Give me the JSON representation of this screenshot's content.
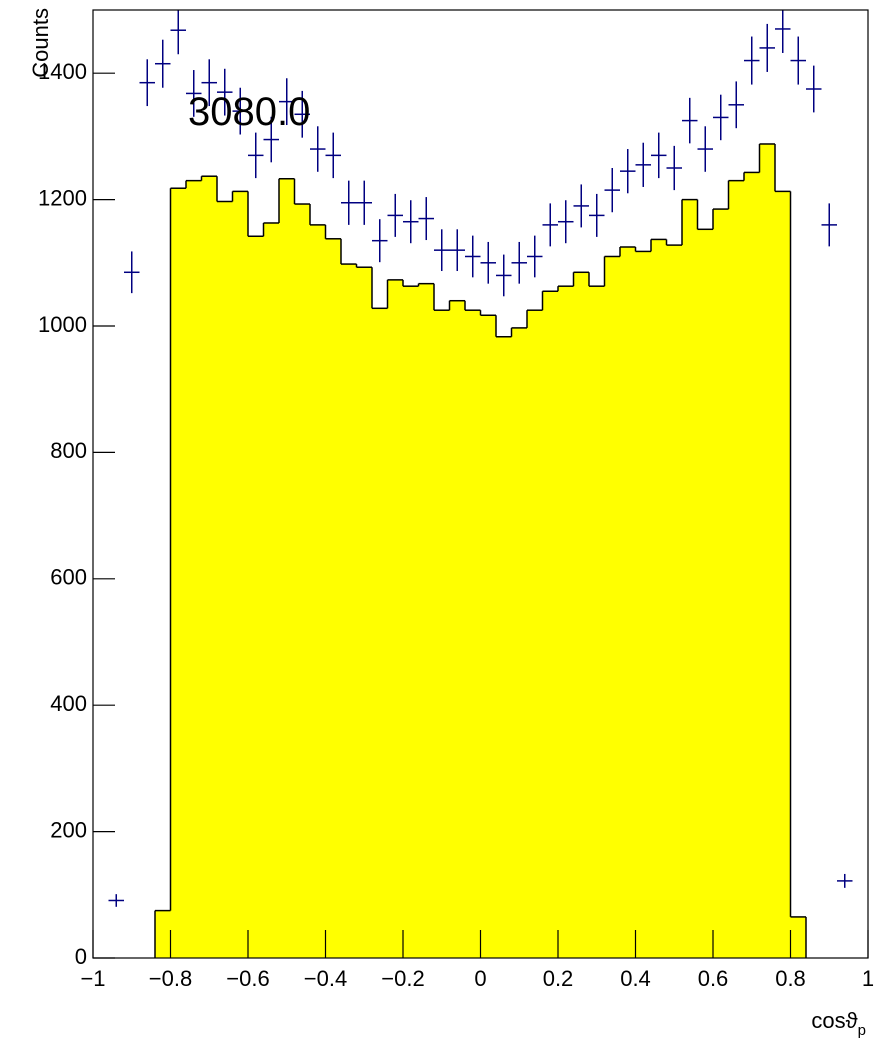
{
  "chart_data": {
    "type": "histogram",
    "ylabel": "Counts",
    "xlabel": {
      "main": "cosϑ",
      "sub": "p"
    },
    "annotation": "3080.0",
    "xlim": [
      -1,
      1
    ],
    "ylim": [
      0,
      1500
    ],
    "xticks": [
      {
        "value": -1,
        "label": "−1"
      },
      {
        "value": -0.8,
        "label": "−0.8"
      },
      {
        "value": -0.6,
        "label": "−0.6"
      },
      {
        "value": -0.4,
        "label": "−0.4"
      },
      {
        "value": -0.2,
        "label": "−0.2"
      },
      0,
      0.2,
      0.4,
      0.6,
      0.8,
      1
    ],
    "yticks": [
      0,
      200,
      400,
      600,
      800,
      1000,
      1200,
      1400
    ],
    "color": "#ffff00",
    "bins": [
      -0.84,
      -0.8,
      -0.76,
      -0.72,
      -0.68,
      -0.64,
      -0.6,
      -0.56,
      -0.52,
      -0.48,
      -0.44,
      -0.4,
      -0.36,
      -0.32,
      -0.28,
      -0.24,
      -0.2,
      -0.16,
      -0.12,
      -0.08,
      -0.04,
      0,
      0.04,
      0.08,
      0.12,
      0.16,
      0.2,
      0.24,
      0.28,
      0.32,
      0.36,
      0.4,
      0.44,
      0.48,
      0.52,
      0.56,
      0.6,
      0.64,
      0.68,
      0.72,
      0.76,
      0.8,
      0.84
    ],
    "counts": [
      75,
      1218,
      1230,
      1237,
      1197,
      1213,
      1142,
      1163,
      1233,
      1193,
      1160,
      1138,
      1098,
      1093,
      1028,
      1073,
      1063,
      1067,
      1025,
      1040,
      1025,
      1017,
      983,
      997,
      1025,
      1055,
      1063,
      1085,
      1063,
      1110,
      1125,
      1118,
      1137,
      1128,
      1200,
      1153,
      1185,
      1230,
      1243,
      1288,
      1213,
      65
    ],
    "points": {
      "color": "#000080",
      "xerr": 0.02,
      "x": [
        -0.94,
        -0.9,
        -0.86,
        -0.82,
        -0.78,
        -0.74,
        -0.7,
        -0.66,
        -0.62,
        -0.58,
        -0.54,
        -0.5,
        -0.46,
        -0.42,
        -0.38,
        -0.34,
        -0.3,
        -0.26,
        -0.22,
        -0.18,
        -0.14,
        -0.1,
        -0.06,
        -0.02,
        0.02,
        0.06,
        0.1,
        0.14,
        0.18,
        0.22,
        0.26,
        0.3,
        0.34,
        0.38,
        0.42,
        0.46,
        0.5,
        0.54,
        0.58,
        0.62,
        0.66,
        0.7,
        0.74,
        0.78,
        0.82,
        0.86,
        0.9,
        0.94
      ],
      "values": [
        91,
        1085,
        1385,
        1415,
        1468,
        1368,
        1385,
        1370,
        1340,
        1270,
        1295,
        1355,
        1335,
        1280,
        1270,
        1195,
        1195,
        1135,
        1175,
        1165,
        1170,
        1120,
        1120,
        1110,
        1100,
        1080,
        1100,
        1110,
        1160,
        1165,
        1190,
        1175,
        1215,
        1245,
        1255,
        1270,
        1250,
        1325,
        1280,
        1330,
        1350,
        1420,
        1440,
        1470,
        1420,
        1375,
        1160,
        122
      ],
      "errors": [
        10,
        33,
        37,
        38,
        38,
        37,
        37,
        37,
        37,
        36,
        36,
        37,
        37,
        36,
        36,
        35,
        35,
        34,
        34,
        34,
        34,
        33,
        33,
        33,
        33,
        33,
        33,
        33,
        34,
        34,
        34,
        34,
        35,
        35,
        35,
        36,
        35,
        36,
        36,
        36,
        37,
        38,
        38,
        38,
        38,
        37,
        34,
        11
      ]
    }
  }
}
